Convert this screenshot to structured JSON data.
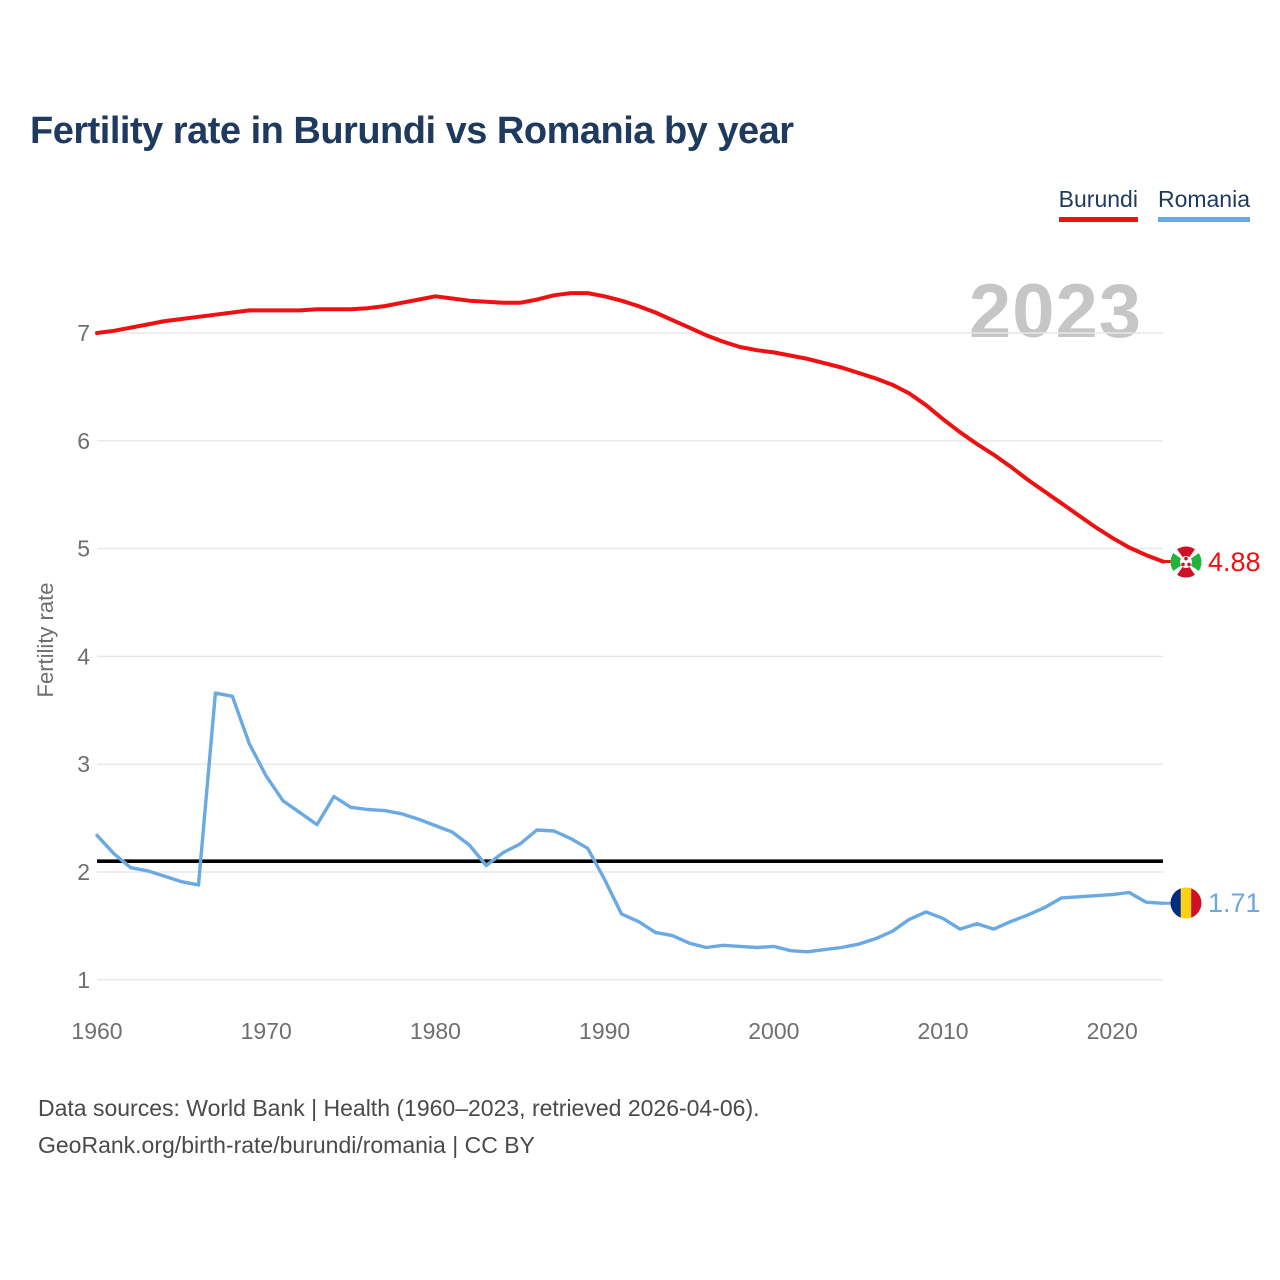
{
  "header": {
    "title": "Fertility rate in Burundi vs Romania by year"
  },
  "legend": {
    "items": [
      {
        "label": "Burundi",
        "color": "#ee1111"
      },
      {
        "label": "Romania",
        "color": "#6aa9e2"
      }
    ]
  },
  "chart_data": {
    "type": "line",
    "title": "Fertility rate in Burundi vs Romania by year",
    "xlabel": "",
    "ylabel": "Fertility rate",
    "year_watermark": "2023",
    "grid": "horizontal",
    "x_range": [
      1960,
      2023
    ],
    "ylim": [
      1,
      7
    ],
    "x_ticks": [
      1960,
      1970,
      1980,
      1990,
      2000,
      2010,
      2020
    ],
    "y_ticks": [
      1,
      2,
      3,
      4,
      5,
      6,
      7
    ],
    "legend_position": "top-right",
    "reference_line": {
      "value": 2.1,
      "color": "#000000"
    },
    "colors": {
      "title": "#1e3a5e",
      "axis_text": "#6f6f6f",
      "grid": "#e7e7e7",
      "watermark": "#c6c6c6",
      "footer_text": "#4a4a4a",
      "background": "#ffffff"
    },
    "flags": {
      "burundi": {
        "red": "#ce1126",
        "green": "#1eb53a",
        "white": "#ffffff"
      },
      "romania": {
        "blue": "#002b7f",
        "yellow": "#fcd116",
        "red": "#ce1126"
      }
    },
    "x": [
      1960,
      1961,
      1962,
      1963,
      1964,
      1965,
      1966,
      1967,
      1968,
      1969,
      1970,
      1971,
      1972,
      1973,
      1974,
      1975,
      1976,
      1977,
      1978,
      1979,
      1980,
      1981,
      1982,
      1983,
      1984,
      1985,
      1986,
      1987,
      1988,
      1989,
      1990,
      1991,
      1992,
      1993,
      1994,
      1995,
      1996,
      1997,
      1998,
      1999,
      2000,
      2001,
      2002,
      2003,
      2004,
      2005,
      2006,
      2007,
      2008,
      2009,
      2010,
      2011,
      2012,
      2013,
      2014,
      2015,
      2016,
      2017,
      2018,
      2019,
      2020,
      2021,
      2022,
      2023
    ],
    "series": [
      {
        "name": "Burundi",
        "color": "#ee1111",
        "end_label": "4.88",
        "end_value": 4.88,
        "flag": "burundi",
        "values": [
          7.0,
          7.02,
          7.05,
          7.08,
          7.11,
          7.13,
          7.15,
          7.17,
          7.19,
          7.21,
          7.21,
          7.21,
          7.21,
          7.22,
          7.22,
          7.22,
          7.23,
          7.25,
          7.28,
          7.31,
          7.34,
          7.32,
          7.3,
          7.29,
          7.28,
          7.28,
          7.31,
          7.35,
          7.37,
          7.37,
          7.34,
          7.3,
          7.25,
          7.19,
          7.12,
          7.05,
          6.98,
          6.92,
          6.87,
          6.84,
          6.82,
          6.79,
          6.76,
          6.72,
          6.68,
          6.63,
          6.58,
          6.52,
          6.44,
          6.33,
          6.2,
          6.08,
          5.97,
          5.87,
          5.76,
          5.64,
          5.53,
          5.42,
          5.31,
          5.2,
          5.1,
          5.01,
          4.94,
          4.88
        ]
      },
      {
        "name": "Romania",
        "color": "#6aa9e2",
        "end_label": "1.71",
        "end_value": 1.71,
        "flag": "romania",
        "values": [
          2.34,
          2.17,
          2.04,
          2.01,
          1.96,
          1.91,
          1.88,
          3.66,
          3.63,
          3.19,
          2.89,
          2.66,
          2.55,
          2.44,
          2.7,
          2.6,
          2.58,
          2.57,
          2.54,
          2.49,
          2.43,
          2.37,
          2.25,
          2.06,
          2.18,
          2.26,
          2.39,
          2.38,
          2.31,
          2.22,
          1.93,
          1.61,
          1.54,
          1.44,
          1.41,
          1.34,
          1.3,
          1.32,
          1.31,
          1.3,
          1.31,
          1.27,
          1.26,
          1.28,
          1.3,
          1.33,
          1.38,
          1.45,
          1.56,
          1.63,
          1.57,
          1.47,
          1.52,
          1.47,
          1.54,
          1.6,
          1.67,
          1.76,
          1.77,
          1.78,
          1.79,
          1.81,
          1.72,
          1.71
        ]
      }
    ]
  },
  "footer": {
    "line1": "Data sources: World Bank | Health (1960–2023, retrieved 2026-04-06).",
    "line2": "GeoRank.org/birth-rate/burundi/romania | CC BY"
  }
}
